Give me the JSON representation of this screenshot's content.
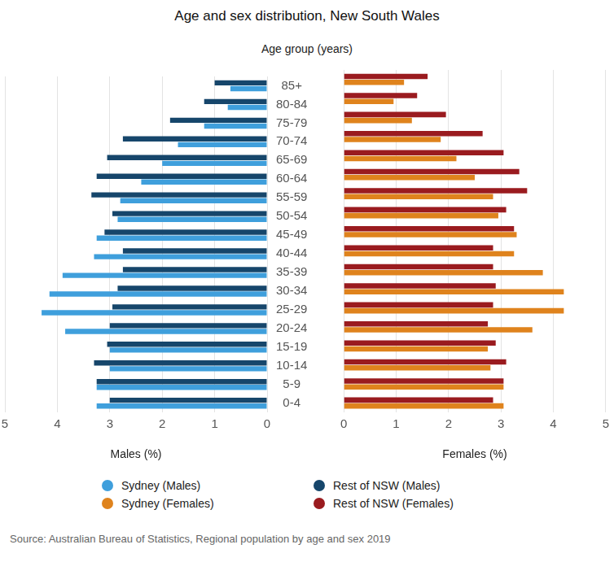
{
  "title": "Age and sex distribution, New South Wales",
  "subtitle": "Age group (years)",
  "source": "Source: Australian Bureau of Statistics, Regional population by age and sex 2019",
  "chart_data": [
    {
      "type": "bar",
      "orientation": "horizontal",
      "x_label": "Males (%)",
      "categories": [
        "85+",
        "80-84",
        "75-79",
        "70-74",
        "65-69",
        "60-64",
        "55-59",
        "50-54",
        "45-49",
        "40-44",
        "35-39",
        "30-34",
        "25-29",
        "20-24",
        "15-19",
        "10-14",
        "5-9",
        "0-4"
      ],
      "series": [
        {
          "name": "Sydney (Males)",
          "color": "#3f9fdc",
          "values": [
            0.7,
            0.75,
            1.2,
            1.7,
            2.0,
            2.4,
            2.8,
            2.85,
            3.25,
            3.3,
            3.9,
            4.15,
            4.3,
            3.85,
            3.0,
            3.0,
            3.25,
            3.25
          ]
        },
        {
          "name": "Rest of NSW (Males)",
          "color": "#16466b",
          "values": [
            1.0,
            1.2,
            1.85,
            2.75,
            3.05,
            3.25,
            3.35,
            2.95,
            3.1,
            2.75,
            2.75,
            2.85,
            2.95,
            3.0,
            3.05,
            3.3,
            3.25,
            3.0
          ]
        }
      ],
      "xlim": [
        0,
        5
      ],
      "xticks": [
        0,
        1,
        2,
        3,
        4,
        5
      ],
      "grid": true,
      "legend": "bottom"
    },
    {
      "type": "bar",
      "orientation": "horizontal",
      "x_label": "Females (%)",
      "categories": [
        "85+",
        "80-84",
        "75-79",
        "70-74",
        "65-69",
        "60-64",
        "55-59",
        "50-54",
        "45-49",
        "40-44",
        "35-39",
        "30-34",
        "25-29",
        "20-24",
        "15-19",
        "10-14",
        "5-9",
        "0-4"
      ],
      "series": [
        {
          "name": "Sydney (Females)",
          "color": "#df831d",
          "values": [
            1.15,
            0.95,
            1.3,
            1.85,
            2.15,
            2.5,
            2.85,
            2.95,
            3.3,
            3.25,
            3.8,
            4.2,
            4.2,
            3.6,
            2.75,
            2.8,
            3.05,
            3.05
          ]
        },
        {
          "name": "Rest of NSW (Females)",
          "color": "#9a1b1f",
          "values": [
            1.6,
            1.4,
            1.95,
            2.65,
            3.05,
            3.35,
            3.5,
            3.1,
            3.25,
            2.85,
            2.85,
            2.9,
            2.85,
            2.75,
            2.9,
            3.1,
            3.05,
            2.85
          ]
        }
      ],
      "xlim": [
        0,
        5
      ],
      "xticks": [
        0,
        1,
        2,
        3,
        4,
        5
      ],
      "grid": true,
      "legend": "bottom",
      "tick_labels": "x"
    }
  ]
}
